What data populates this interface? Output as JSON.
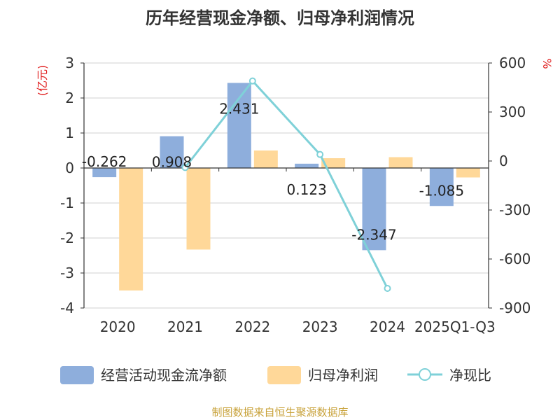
{
  "chart_data": {
    "type": "bar+line",
    "title": "历年经营现金净额、归母净利润情况",
    "left_axis_label": "(亿元)",
    "right_axis_label": "%",
    "categories": [
      "2020",
      "2021",
      "2022",
      "2023",
      "2024",
      "2025Q1-Q3"
    ],
    "ylim_left": [
      -4,
      3
    ],
    "yticks_left": [
      "3",
      "2",
      "1",
      "0",
      "-1",
      "-2",
      "-3",
      "-4"
    ],
    "ylim_right": [
      -900,
      600
    ],
    "yticks_right": [
      "600",
      "300",
      "0",
      "-300",
      "-600",
      "-900"
    ],
    "series": [
      {
        "name": "经营活动现金流净额",
        "type": "bar",
        "axis": "left",
        "color": "#8eaedc",
        "values": [
          -0.262,
          0.908,
          2.431,
          0.123,
          -2.347,
          -1.085
        ],
        "labels": [
          "-0.262",
          "0.908",
          "2.431",
          "0.123",
          "-2.347",
          "-1.085"
        ]
      },
      {
        "name": "归母净利润",
        "type": "bar",
        "axis": "left",
        "color": "#ffd899",
        "values": [
          -3.5,
          -2.33,
          0.5,
          0.28,
          0.31,
          -0.27
        ]
      },
      {
        "name": "净现比",
        "type": "line",
        "axis": "right",
        "color": "#7fd1d8",
        "values": [
          null,
          -40,
          490,
          40,
          -780,
          null
        ]
      }
    ],
    "legend_position": "bottom",
    "source": "制图数据来自恒生聚源数据库"
  }
}
